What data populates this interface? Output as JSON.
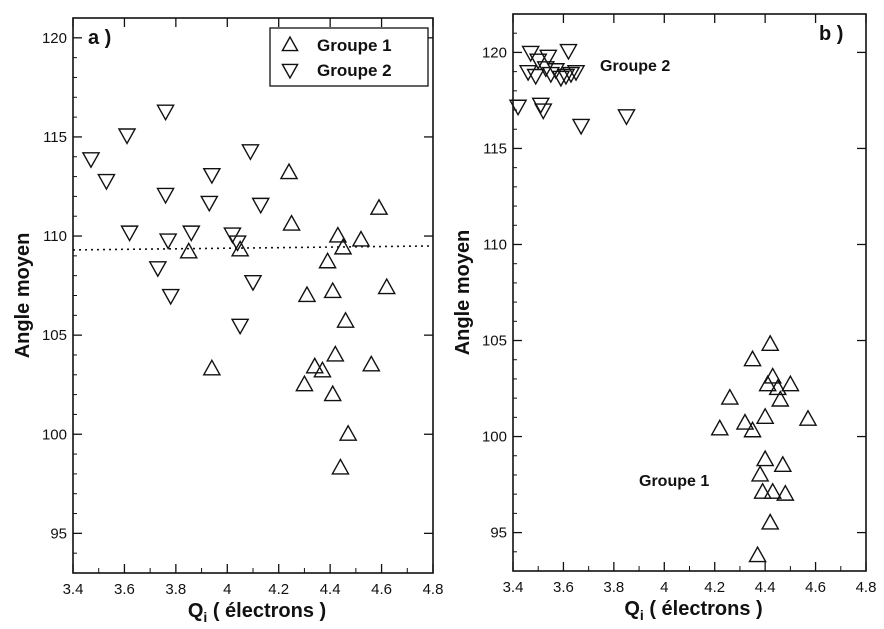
{
  "chart_data": [
    {
      "type": "scatter",
      "panel_label": "a )",
      "xlabel": "Q",
      "xlabel_sub": "i",
      "xlabel_rest": " ( électrons )",
      "ylabel": "Angle moyen",
      "xlim": [
        3.4,
        4.8
      ],
      "ylim": [
        93,
        121
      ],
      "xticks": [
        "3.4",
        "3.6",
        "3.8",
        "4",
        "4.2",
        "4.4",
        "4.6",
        "4.8"
      ],
      "yticks": [
        "95",
        "100",
        "105",
        "110",
        "115",
        "120"
      ],
      "legend": {
        "placement": "top-right",
        "entries": [
          "Groupe 1",
          "Groupe 2"
        ]
      },
      "reference_line": {
        "style": "dotted",
        "y": [
          109.3,
          109.5
        ]
      },
      "series": [
        {
          "name": "Groupe 1",
          "marker": "triangle-up",
          "points": [
            [
              3.85,
              109.2
            ],
            [
              3.94,
              103.3
            ],
            [
              4.05,
              109.3
            ],
            [
              4.24,
              113.2
            ],
            [
              4.25,
              110.6
            ],
            [
              4.3,
              102.5
            ],
            [
              4.31,
              107.0
            ],
            [
              4.34,
              103.4
            ],
            [
              4.37,
              103.2
            ],
            [
              4.39,
              108.7
            ],
            [
              4.41,
              102.0
            ],
            [
              4.41,
              107.2
            ],
            [
              4.42,
              104.0
            ],
            [
              4.43,
              110.0
            ],
            [
              4.44,
              98.3
            ],
            [
              4.45,
              109.4
            ],
            [
              4.46,
              105.7
            ],
            [
              4.47,
              100.0
            ],
            [
              4.52,
              109.8
            ],
            [
              4.56,
              103.5
            ],
            [
              4.59,
              111.4
            ],
            [
              4.62,
              107.4
            ]
          ]
        },
        {
          "name": "Groupe 2",
          "marker": "triangle-down",
          "points": [
            [
              3.47,
              113.9
            ],
            [
              3.53,
              112.8
            ],
            [
              3.61,
              115.1
            ],
            [
              3.62,
              110.2
            ],
            [
              3.73,
              108.4
            ],
            [
              3.76,
              112.1
            ],
            [
              3.76,
              116.3
            ],
            [
              3.77,
              109.8
            ],
            [
              3.78,
              107.0
            ],
            [
              3.86,
              110.2
            ],
            [
              3.93,
              111.7
            ],
            [
              3.94,
              113.1
            ],
            [
              4.02,
              110.1
            ],
            [
              4.04,
              109.7
            ],
            [
              4.05,
              105.5
            ],
            [
              4.09,
              114.3
            ],
            [
              4.1,
              107.7
            ],
            [
              4.13,
              111.6
            ]
          ]
        }
      ]
    },
    {
      "type": "scatter",
      "panel_label": "b )",
      "xlabel": "Q",
      "xlabel_sub": "i",
      "xlabel_rest": " ( électrons )",
      "ylabel": "Angle moyen",
      "xlim": [
        3.4,
        4.8
      ],
      "ylim": [
        93,
        122
      ],
      "xticks": [
        "3.4",
        "3.6",
        "3.8",
        "4",
        "4.2",
        "4.4",
        "4.6",
        "4.8"
      ],
      "yticks": [
        "95",
        "100",
        "105",
        "110",
        "115",
        "120"
      ],
      "annotations": [
        "Groupe 2",
        "Groupe 1"
      ],
      "series": [
        {
          "name": "Groupe 1",
          "marker": "triangle-up",
          "points": [
            [
              4.22,
              100.4
            ],
            [
              4.26,
              102.0
            ],
            [
              4.32,
              100.7
            ],
            [
              4.35,
              104.0
            ],
            [
              4.35,
              100.3
            ],
            [
              4.37,
              93.8
            ],
            [
              4.38,
              98.0
            ],
            [
              4.39,
              97.1
            ],
            [
              4.4,
              101.0
            ],
            [
              4.4,
              98.8
            ],
            [
              4.41,
              102.7
            ],
            [
              4.42,
              104.8
            ],
            [
              4.42,
              95.5
            ],
            [
              4.43,
              103.1
            ],
            [
              4.43,
              97.1
            ],
            [
              4.45,
              102.5
            ],
            [
              4.46,
              101.9
            ],
            [
              4.47,
              98.5
            ],
            [
              4.48,
              97.0
            ],
            [
              4.5,
              102.7
            ],
            [
              4.57,
              100.9
            ]
          ]
        },
        {
          "name": "Groupe 2",
          "marker": "triangle-down",
          "points": [
            [
              3.42,
              117.2
            ],
            [
              3.46,
              119.0
            ],
            [
              3.47,
              120.0
            ],
            [
              3.49,
              118.8
            ],
            [
              3.5,
              119.6
            ],
            [
              3.51,
              117.3
            ],
            [
              3.52,
              117.0
            ],
            [
              3.53,
              119.2
            ],
            [
              3.54,
              119.8
            ],
            [
              3.55,
              118.9
            ],
            [
              3.57,
              119.1
            ],
            [
              3.59,
              118.7
            ],
            [
              3.61,
              118.8
            ],
            [
              3.62,
              120.1
            ],
            [
              3.63,
              118.9
            ],
            [
              3.65,
              119.0
            ],
            [
              3.67,
              116.2
            ],
            [
              3.85,
              116.7
            ]
          ]
        }
      ]
    }
  ]
}
